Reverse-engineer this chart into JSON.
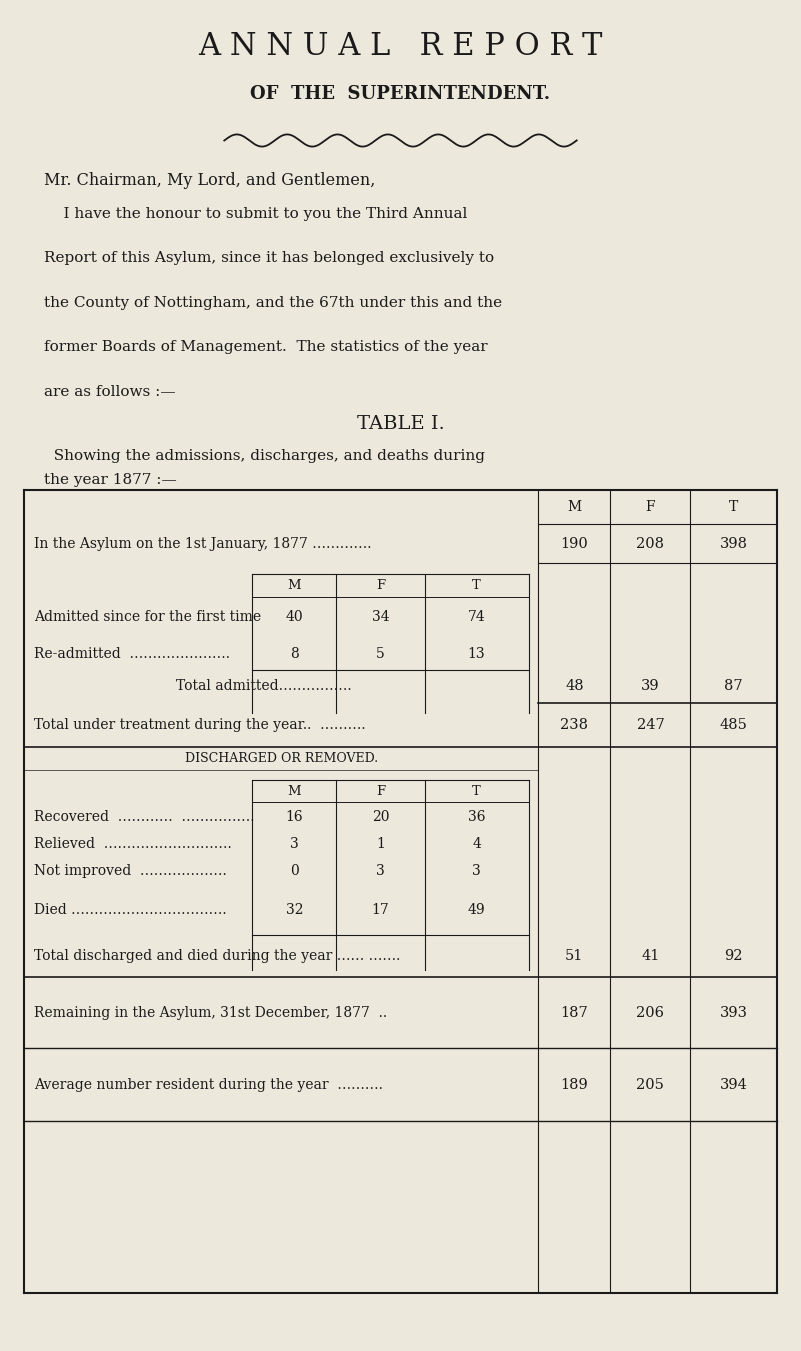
{
  "bg_color": "#ede8dc",
  "text_color": "#1a1a1a",
  "title1": "ANNUAL REPORT",
  "title2": "OF THE SUPERINTENDENT.",
  "salutation": "Mr. Chairman, My Lord, and Gentlemen,",
  "body_line1": "    I have the honour to submit to you the Third Annual",
  "body_line2": "Report of this Asylum, since it has belonged exclusively to",
  "body_line3": "the County of Nottingham, and the 67th under this and the",
  "body_line4": "former Boards of Management.  The statistics of the year",
  "body_line5": "are as follows :—",
  "table_title": "TABLE I.",
  "table_subtitle1": "  Showing the admissions, discharges, and deaths during",
  "table_subtitle2": "the year 1877 :—",
  "row1_label": "In the Asylum on the 1st January, 1877 ………….",
  "row1_M": "190",
  "row1_F": "208",
  "row1_T": "398",
  "admitted_first_label": "Admitted since for the first time",
  "admitted_first_M": "40",
  "admitted_first_F": "34",
  "admitted_first_T": "74",
  "readmitted_label": "Re-admitted  ………………….",
  "readmitted_M": "8",
  "readmitted_F": "5",
  "readmitted_T": "13",
  "total_admitted_label": "Total admitted…………….",
  "total_admitted_M": "48",
  "total_admitted_F": "39",
  "total_admitted_T": "87",
  "total_treatment_label": "Total under treatment during the year..  ……….",
  "total_treatment_M": "238",
  "total_treatment_F": "247",
  "total_treatment_T": "485",
  "discharged_header": "DISCHARGED OR REMOVED.",
  "recovered_label": "Recovered  …………  …………….",
  "recovered_M": "16",
  "recovered_F": "20",
  "recovered_T": "36",
  "relieved_label": "Relieved  ……………………….",
  "relieved_M": "3",
  "relieved_F": "1",
  "relieved_T": "4",
  "not_improved_label": "Not improved  ……………….",
  "not_improved_M": "0",
  "not_improved_F": "3",
  "not_improved_T": "3",
  "died_label": "Died …………………………….",
  "died_M": "32",
  "died_F": "17",
  "died_T": "49",
  "total_discharged_label": "Total discharged and died during the year …… …….",
  "total_discharged_M": "51",
  "total_discharged_F": "41",
  "total_discharged_T": "92",
  "remaining_label": "Remaining in the Asylum, 31st December, 1877  ..",
  "remaining_M": "187",
  "remaining_F": "206",
  "remaining_T": "393",
  "average_label": "Average number resident during the year  ……….",
  "average_M": "189",
  "average_F": "205",
  "average_T": "394"
}
